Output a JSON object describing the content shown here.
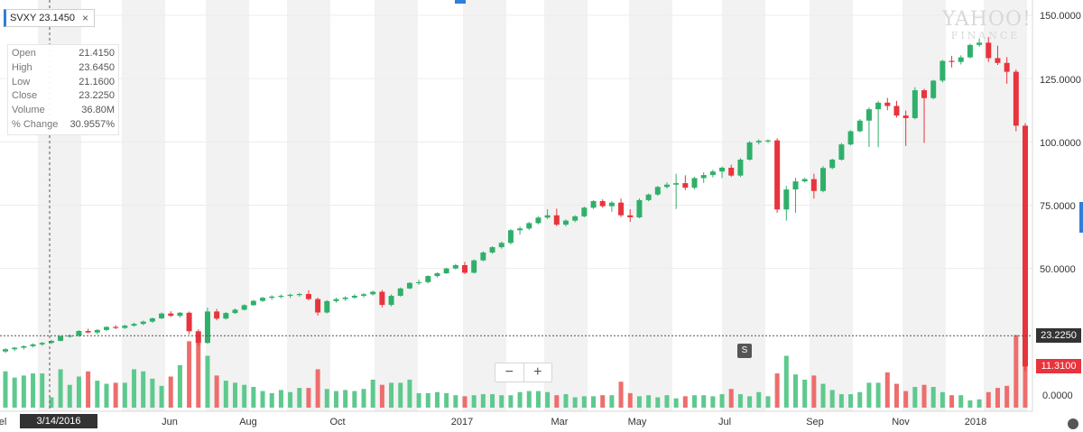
{
  "colors": {
    "up": "#2fb06a",
    "down": "#e8343c",
    "vol_up": "#5ec98e",
    "vol_down": "#ee6d6d",
    "band": "#f2f2f2",
    "grid": "#ececec",
    "accent": "#2f7ed8"
  },
  "legend": {
    "label": "SVXY 23.1450",
    "close_icon": "×"
  },
  "ohlc": [
    {
      "label": "Open",
      "value": "21.4150"
    },
    {
      "label": "High",
      "value": "23.6450"
    },
    {
      "label": "Low",
      "value": "21.1600"
    },
    {
      "label": "Close",
      "value": "23.2250"
    },
    {
      "label": "Volume",
      "value": "36.80M"
    },
    {
      "label": "% Change",
      "value": "30.9557%"
    }
  ],
  "zoom": {
    "minus": "−",
    "plus": "+"
  },
  "markers": {
    "split": "S",
    "crosshair_date": "3/14/2016",
    "last_price": "23.2250",
    "current_price": "11.3100"
  },
  "watermark": {
    "line1": "YAHOO!",
    "line2": "FINANCE"
  },
  "chart_data": {
    "type": "candlestick",
    "y_ticks": [
      "150.0000",
      "125.0000",
      "100.0000",
      "75.0000",
      "50.0000",
      "0.0000"
    ],
    "ylim": [
      0,
      150
    ],
    "x_ticks": [
      "Jun",
      "Aug",
      "Oct",
      "2017",
      "Mar",
      "May",
      "Jul",
      "Sep",
      "Nov",
      "2018"
    ],
    "x_edge_label": "el",
    "horizontal_line": 23.225,
    "candles": [
      [
        17.2,
        18.5,
        16.6,
        18.1,
        3.5
      ],
      [
        18.1,
        19.0,
        17.4,
        18.7,
        2.9
      ],
      [
        18.7,
        19.6,
        18.0,
        19.3,
        3.1
      ],
      [
        19.3,
        20.4,
        18.8,
        20.0,
        3.3
      ],
      [
        20.0,
        21.0,
        19.4,
        20.6,
        3.3
      ],
      [
        20.6,
        21.8,
        20.1,
        21.4,
        1.0
      ],
      [
        21.4,
        23.6,
        21.2,
        23.2,
        3.7
      ],
      [
        23.2,
        24.0,
        22.6,
        23.5,
        2.2
      ],
      [
        23.5,
        25.6,
        23.0,
        25.3,
        3.0
      ],
      [
        25.3,
        26.2,
        24.4,
        24.7,
        3.5
      ],
      [
        24.7,
        26.0,
        24.0,
        25.7,
        2.6
      ],
      [
        25.7,
        27.2,
        25.2,
        26.9,
        2.3
      ],
      [
        26.9,
        27.6,
        26.0,
        26.5,
        2.4
      ],
      [
        26.5,
        27.8,
        26.1,
        27.4,
        2.4
      ],
      [
        27.4,
        28.6,
        27.0,
        28.1,
        3.7
      ],
      [
        28.1,
        29.4,
        27.6,
        29.0,
        3.5
      ],
      [
        29.0,
        30.6,
        28.5,
        30.3,
        2.8
      ],
      [
        30.3,
        32.6,
        30.0,
        32.2,
        2.1
      ],
      [
        32.2,
        33.1,
        30.8,
        31.3,
        3.0
      ],
      [
        31.3,
        32.8,
        30.6,
        32.5,
        4.1
      ],
      [
        32.5,
        33.0,
        24.0,
        25.2,
        6.4
      ],
      [
        25.2,
        26.0,
        19.6,
        20.6,
        7.0
      ],
      [
        20.6,
        34.5,
        20.2,
        33.0,
        5.0
      ],
      [
        33.0,
        34.0,
        29.5,
        30.2,
        3.1
      ],
      [
        30.2,
        32.8,
        29.8,
        32.4,
        2.6
      ],
      [
        32.4,
        34.2,
        32.0,
        33.7,
        2.4
      ],
      [
        33.7,
        35.8,
        33.4,
        35.5,
        2.2
      ],
      [
        35.5,
        37.6,
        35.2,
        37.2,
        2.0
      ],
      [
        37.2,
        38.8,
        36.8,
        38.4,
        1.6
      ],
      [
        38.4,
        39.4,
        37.6,
        38.9,
        1.4
      ],
      [
        38.9,
        39.7,
        38.2,
        39.2,
        1.7
      ],
      [
        39.2,
        40.1,
        38.4,
        39.6,
        1.5
      ],
      [
        39.6,
        40.4,
        38.8,
        39.9,
        1.9
      ],
      [
        39.9,
        41.4,
        37.4,
        37.9,
        1.9
      ],
      [
        37.9,
        38.5,
        31.4,
        32.6,
        3.7
      ],
      [
        32.6,
        37.5,
        32.2,
        37.1,
        1.8
      ],
      [
        37.1,
        38.4,
        36.5,
        37.9,
        1.6
      ],
      [
        37.9,
        39.0,
        37.2,
        38.5,
        1.7
      ],
      [
        38.5,
        39.8,
        38.0,
        39.2,
        1.6
      ],
      [
        39.2,
        40.3,
        38.5,
        39.8,
        1.8
      ],
      [
        39.8,
        41.2,
        39.3,
        40.8,
        2.7
      ],
      [
        40.8,
        41.5,
        34.7,
        35.6,
        2.2
      ],
      [
        35.6,
        39.8,
        35.0,
        39.2,
        2.4
      ],
      [
        39.2,
        42.5,
        38.8,
        42.1,
        2.4
      ],
      [
        42.1,
        44.6,
        41.8,
        44.3,
        2.7
      ],
      [
        44.3,
        45.6,
        43.5,
        44.6,
        1.4
      ],
      [
        44.6,
        47.3,
        44.1,
        47.0,
        1.4
      ],
      [
        47.0,
        48.5,
        46.4,
        48.1,
        1.5
      ],
      [
        48.1,
        50.3,
        47.8,
        50.0,
        1.4
      ],
      [
        50.0,
        51.8,
        49.6,
        51.3,
        1.2
      ],
      [
        51.3,
        52.6,
        47.8,
        48.3,
        1.1
      ],
      [
        48.3,
        53.6,
        48.0,
        53.2,
        1.2
      ],
      [
        53.2,
        56.8,
        52.8,
        56.3,
        1.3
      ],
      [
        56.3,
        58.8,
        55.8,
        58.4,
        1.3
      ],
      [
        58.4,
        60.6,
        57.8,
        60.1,
        1.2
      ],
      [
        60.1,
        65.6,
        59.5,
        65.1,
        1.2
      ],
      [
        65.1,
        66.5,
        63.4,
        65.8,
        1.5
      ],
      [
        65.8,
        68.4,
        65.2,
        67.9,
        1.6
      ],
      [
        67.9,
        70.6,
        67.4,
        70.1,
        1.6
      ],
      [
        70.1,
        73.4,
        69.5,
        71.0,
        1.5
      ],
      [
        71.0,
        73.6,
        66.7,
        67.3,
        1.2
      ],
      [
        67.3,
        69.4,
        66.6,
        68.9,
        1.3
      ],
      [
        68.9,
        71.0,
        68.3,
        70.6,
        1.0
      ],
      [
        70.6,
        74.4,
        70.2,
        74.0,
        1.1
      ],
      [
        74.0,
        77.0,
        73.5,
        76.6,
        1.1
      ],
      [
        76.6,
        77.3,
        74.0,
        74.6,
        1.2
      ],
      [
        74.6,
        76.6,
        72.4,
        76.0,
        1.2
      ],
      [
        76.0,
        77.6,
        70.3,
        71.0,
        2.5
      ],
      [
        71.0,
        73.4,
        68.4,
        70.2,
        1.4
      ],
      [
        70.2,
        77.7,
        69.8,
        77.0,
        1.1
      ],
      [
        77.0,
        79.6,
        76.5,
        79.2,
        1.2
      ],
      [
        79.2,
        82.6,
        78.7,
        82.2,
        1.0
      ],
      [
        82.2,
        84.0,
        81.6,
        83.1,
        1.2
      ],
      [
        83.1,
        87.4,
        73.5,
        83.7,
        0.9
      ],
      [
        83.7,
        86.8,
        81.0,
        81.9,
        1.1
      ],
      [
        81.9,
        86.2,
        81.3,
        85.7,
        1.2
      ],
      [
        85.7,
        88.0,
        83.8,
        86.9,
        1.2
      ],
      [
        86.9,
        89.0,
        86.0,
        88.3,
        1.1
      ],
      [
        88.3,
        90.3,
        85.7,
        89.8,
        1.3
      ],
      [
        89.8,
        91.0,
        86.2,
        86.7,
        1.8
      ],
      [
        86.7,
        93.6,
        86.1,
        93.0,
        1.3
      ],
      [
        93.0,
        100.3,
        92.6,
        99.8,
        1.1
      ],
      [
        99.8,
        101.0,
        99.0,
        100.4,
        1.5
      ],
      [
        100.4,
        101.0,
        99.6,
        100.6,
        1.1
      ],
      [
        100.6,
        101.4,
        72.0,
        73.3,
        3.3
      ],
      [
        73.3,
        82.6,
        68.9,
        81.2,
        5.0
      ],
      [
        81.2,
        85.8,
        72.0,
        84.4,
        3.2
      ],
      [
        84.4,
        85.8,
        84.0,
        85.3,
        2.7
      ],
      [
        85.3,
        87.4,
        77.6,
        80.6,
        3.1
      ],
      [
        80.6,
        90.4,
        80.1,
        89.7,
        2.3
      ],
      [
        89.7,
        93.4,
        89.2,
        93.0,
        1.7
      ],
      [
        93.0,
        99.6,
        92.6,
        99.0,
        1.3
      ],
      [
        99.0,
        104.6,
        98.6,
        104.2,
        1.3
      ],
      [
        104.2,
        109.0,
        103.8,
        108.4,
        1.5
      ],
      [
        108.4,
        113.6,
        98.0,
        112.9,
        2.4
      ],
      [
        112.9,
        116.2,
        97.9,
        115.5,
        2.4
      ],
      [
        115.5,
        117.4,
        112.5,
        114.2,
        3.4
      ],
      [
        114.2,
        116.2,
        109.6,
        110.4,
        2.3
      ],
      [
        110.4,
        112.4,
        98.4,
        109.4,
        1.6
      ],
      [
        109.4,
        121.6,
        108.9,
        120.4,
        2.0
      ],
      [
        120.4,
        121.0,
        99.6,
        117.3,
        2.2
      ],
      [
        117.3,
        124.5,
        116.8,
        124.2,
        2.0
      ],
      [
        124.2,
        132.4,
        123.5,
        132.0,
        1.5
      ],
      [
        132.0,
        134.0,
        129.4,
        131.6,
        1.2
      ],
      [
        131.6,
        134.2,
        130.6,
        133.4,
        1.2
      ],
      [
        133.4,
        138.8,
        133.0,
        138.3,
        0.7
      ],
      [
        138.3,
        140.7,
        137.6,
        139.2,
        0.8
      ],
      [
        139.2,
        141.4,
        131.6,
        133.1,
        1.5
      ],
      [
        133.1,
        138.0,
        130.4,
        131.2,
        1.9
      ],
      [
        131.2,
        133.5,
        123.0,
        127.7,
        2.1
      ],
      [
        127.7,
        128.6,
        104.2,
        106.4,
        7.0
      ],
      [
        106.4,
        107.4,
        9.4,
        11.31,
        4.9
      ]
    ]
  }
}
